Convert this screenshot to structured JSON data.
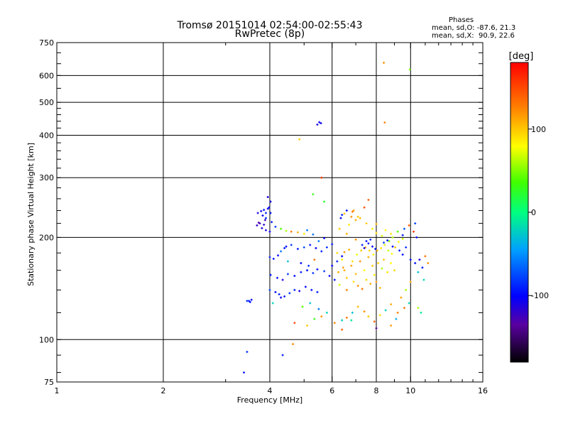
{
  "header": {
    "title": "Tromsø 20151014 02:54:00-02:55:43",
    "subtitle": "RwPretec (8p)",
    "stats_title": "Phases",
    "stats_o": "mean, sd,O: -87.6, 21.3",
    "stats_x": "mean, sd,X:  90.9, 22.6"
  },
  "colorbar": {
    "label": "[deg]",
    "range": [
      -180,
      180
    ],
    "ticks": [
      {
        "value": 100,
        "label": "100"
      },
      {
        "value": 0,
        "label": "0"
      },
      {
        "value": -100,
        "label": "-100"
      }
    ]
  },
  "chart_data": {
    "type": "scatter",
    "title": "Tromsø 20151014 02:54:00-02:55:43",
    "subtitle": "RwPretec (8p)",
    "xlabel": "Frequency [MHz]",
    "ylabel": "Stationary phase Virtual Height [km]",
    "xscale": "log",
    "yscale": "log",
    "xlim": [
      1,
      16
    ],
    "ylim": [
      75,
      750
    ],
    "xticks": [
      1,
      2,
      4,
      6,
      8,
      10,
      16
    ],
    "yticks": [
      75,
      100,
      200,
      300,
      400,
      500,
      600,
      750
    ],
    "grid": true,
    "colorbar_label": "[deg]",
    "series": [
      {
        "points": [
          [
            3.49,
            130,
            -90
          ],
          [
            3.52,
            129,
            -95
          ],
          [
            3.45,
            130,
            -85
          ],
          [
            3.55,
            131,
            -100
          ],
          [
            3.38,
            80,
            -95
          ],
          [
            3.45,
            92,
            -85
          ],
          [
            4.35,
            90,
            -90
          ],
          [
            4.65,
            97,
            125
          ],
          [
            3.7,
            236,
            -110
          ],
          [
            3.78,
            239,
            -100
          ],
          [
            3.85,
            241,
            -95
          ],
          [
            3.9,
            236,
            -90
          ],
          [
            3.95,
            243,
            -105
          ],
          [
            3.82,
            232,
            -100
          ],
          [
            4.02,
            236,
            -95
          ],
          [
            3.9,
            228,
            -85
          ],
          [
            3.98,
            245,
            -100
          ],
          [
            3.95,
            263,
            -110
          ],
          [
            4.02,
            255,
            -105
          ],
          [
            3.88,
            225,
            -120
          ],
          [
            3.75,
            220,
            -125
          ],
          [
            3.68,
            217,
            -120
          ],
          [
            3.8,
            213,
            -115
          ],
          [
            3.9,
            210,
            -110
          ],
          [
            4.0,
            208,
            -100
          ],
          [
            3.72,
            221,
            -130
          ],
          [
            3.85,
            218,
            -120
          ],
          [
            4.05,
            222,
            -95
          ],
          [
            4.15,
            215,
            -80
          ],
          [
            4.3,
            212,
            40
          ],
          [
            4.45,
            209,
            60
          ],
          [
            4.6,
            208,
            130
          ],
          [
            4.8,
            207,
            110
          ],
          [
            5.0,
            205,
            90
          ],
          [
            5.3,
            204,
            -60
          ],
          [
            5.1,
            210,
            -60
          ],
          [
            5.45,
            430,
            -110
          ],
          [
            5.52,
            437,
            -100
          ],
          [
            5.58,
            434,
            -105
          ],
          [
            4.85,
            389,
            100
          ],
          [
            5.6,
            300,
            160
          ],
          [
            5.7,
            255,
            20
          ],
          [
            5.3,
            268,
            30
          ],
          [
            4.0,
            175,
            -90
          ],
          [
            4.1,
            173,
            -95
          ],
          [
            4.22,
            177,
            -100
          ],
          [
            4.3,
            182,
            -60
          ],
          [
            4.4,
            186,
            -90
          ],
          [
            4.45,
            188,
            -100
          ],
          [
            4.6,
            190,
            -80
          ],
          [
            4.8,
            185,
            -90
          ],
          [
            5.0,
            187,
            -75
          ],
          [
            5.2,
            190,
            -95
          ],
          [
            5.4,
            186,
            -100
          ],
          [
            5.6,
            182,
            -90
          ],
          [
            5.8,
            187,
            -85
          ],
          [
            6.0,
            191,
            -90
          ],
          [
            5.5,
            195,
            -60
          ],
          [
            5.7,
            199,
            -100
          ],
          [
            4.5,
            170,
            -30
          ],
          [
            4.9,
            168,
            -100
          ],
          [
            5.15,
            165,
            -85
          ],
          [
            5.35,
            172,
            130
          ],
          [
            6.2,
            170,
            -90
          ],
          [
            6.4,
            176,
            -100
          ],
          [
            6.5,
            181,
            120
          ],
          [
            6.7,
            184,
            110
          ],
          [
            4.02,
            155,
            -90
          ],
          [
            4.2,
            152,
            -95
          ],
          [
            4.35,
            150,
            -110
          ],
          [
            4.5,
            156,
            -80
          ],
          [
            4.7,
            154,
            -100
          ],
          [
            4.9,
            158,
            -90
          ],
          [
            5.1,
            160,
            -100
          ],
          [
            5.3,
            157,
            -85
          ],
          [
            5.45,
            161,
            -95
          ],
          [
            5.7,
            159,
            -80
          ],
          [
            5.9,
            154,
            -100
          ],
          [
            4.15,
            138,
            -100
          ],
          [
            4.25,
            136,
            -90
          ],
          [
            4.4,
            134,
            -95
          ],
          [
            4.55,
            137,
            -85
          ],
          [
            4.7,
            140,
            -90
          ],
          [
            4.85,
            139,
            -110
          ],
          [
            5.05,
            143,
            -100
          ],
          [
            5.25,
            140,
            -95
          ],
          [
            5.45,
            138,
            -90
          ],
          [
            4.0,
            140,
            -80
          ],
          [
            4.08,
            128,
            -20
          ],
          [
            4.3,
            133,
            -105
          ],
          [
            4.95,
            125,
            40
          ],
          [
            5.2,
            128,
            -30
          ],
          [
            5.5,
            123,
            -60
          ],
          [
            5.35,
            115,
            30
          ],
          [
            5.6,
            117,
            120
          ],
          [
            4.7,
            112,
            150
          ],
          [
            5.1,
            110,
            100
          ],
          [
            5.8,
            120,
            -20
          ],
          [
            6.1,
            112,
            125
          ],
          [
            6.4,
            107,
            140
          ],
          [
            6.8,
            114,
            -10
          ],
          [
            6.2,
            180,
            95
          ],
          [
            6.4,
            172,
            85
          ],
          [
            6.5,
            160,
            110
          ],
          [
            6.6,
            152,
            100
          ],
          [
            6.8,
            165,
            115
          ],
          [
            6.9,
            148,
            90
          ],
          [
            7.0,
            156,
            105
          ],
          [
            7.2,
            170,
            120
          ],
          [
            7.4,
            160,
            80
          ],
          [
            7.5,
            150,
            95
          ],
          [
            7.6,
            175,
            110
          ],
          [
            7.8,
            165,
            100
          ],
          [
            7.9,
            155,
            85
          ],
          [
            8.0,
            148,
            115
          ],
          [
            8.1,
            168,
            95
          ],
          [
            8.3,
            162,
            60
          ],
          [
            8.4,
            172,
            100
          ],
          [
            8.6,
            158,
            90
          ],
          [
            8.8,
            168,
            80
          ],
          [
            9.0,
            160,
            95
          ],
          [
            7.1,
            144,
            120
          ],
          [
            7.3,
            141,
            130
          ],
          [
            7.7,
            146,
            110
          ],
          [
            8.2,
            142,
            105
          ],
          [
            6.3,
            145,
            70
          ],
          [
            6.6,
            140,
            125
          ],
          [
            6.1,
            150,
            -95
          ],
          [
            6.0,
            165,
            -100
          ],
          [
            6.25,
            158,
            110
          ],
          [
            6.45,
            163,
            115
          ],
          [
            6.85,
            170,
            90
          ],
          [
            7.05,
            178,
            75
          ],
          [
            7.25,
            183,
            100
          ],
          [
            7.45,
            187,
            110
          ],
          [
            7.65,
            183,
            95
          ],
          [
            7.85,
            178,
            85
          ],
          [
            8.05,
            183,
            105
          ],
          [
            8.25,
            186,
            90
          ],
          [
            8.45,
            190,
            70
          ],
          [
            8.65,
            183,
            65
          ],
          [
            8.85,
            179,
            80
          ],
          [
            9.05,
            187,
            100
          ],
          [
            9.25,
            194,
            85
          ],
          [
            9.5,
            198,
            70
          ],
          [
            8.7,
            195,
            50
          ],
          [
            8.9,
            200,
            60
          ],
          [
            7.0,
            197,
            120
          ],
          [
            6.6,
            205,
            110
          ],
          [
            6.3,
            212,
            100
          ],
          [
            6.7,
            218,
            90
          ],
          [
            7.0,
            225,
            110
          ],
          [
            6.8,
            230,
            120
          ],
          [
            6.5,
            235,
            100
          ],
          [
            6.9,
            240,
            115
          ],
          [
            7.2,
            228,
            105
          ],
          [
            7.5,
            220,
            100
          ],
          [
            7.8,
            212,
            85
          ],
          [
            8.0,
            206,
            95
          ],
          [
            8.3,
            202,
            70
          ],
          [
            8.5,
            210,
            80
          ],
          [
            8.8,
            205,
            90
          ],
          [
            9.2,
            208,
            40
          ],
          [
            9.6,
            212,
            -70
          ],
          [
            9.9,
            217,
            140
          ],
          [
            10.3,
            220,
            -80
          ],
          [
            10.4,
            200,
            -100
          ],
          [
            10.2,
            208,
            160
          ],
          [
            9.5,
            203,
            -90
          ],
          [
            6.4,
            233,
            -90
          ],
          [
            6.6,
            240,
            -95
          ],
          [
            6.35,
            228,
            -100
          ],
          [
            7.6,
            258,
            140
          ],
          [
            7.4,
            245,
            150
          ],
          [
            6.85,
            238,
            130
          ],
          [
            7.1,
            230,
            100
          ],
          [
            8.0,
            219,
            110
          ],
          [
            7.3,
            190,
            -90
          ],
          [
            7.5,
            195,
            -100
          ],
          [
            7.6,
            192,
            -95
          ],
          [
            7.7,
            197,
            -85
          ],
          [
            7.4,
            186,
            -110
          ],
          [
            7.8,
            188,
            -100
          ],
          [
            7.95,
            185,
            -90
          ],
          [
            8.4,
            193,
            -80
          ],
          [
            8.6,
            196,
            -95
          ],
          [
            8.9,
            188,
            -100
          ],
          [
            9.3,
            183,
            -90
          ],
          [
            9.7,
            187,
            -85
          ],
          [
            9.5,
            178,
            -95
          ],
          [
            10.0,
            172,
            -100
          ],
          [
            10.3,
            168,
            -95
          ],
          [
            10.6,
            172,
            -110
          ],
          [
            11.0,
            176,
            130
          ],
          [
            11.2,
            168,
            120
          ],
          [
            10.8,
            163,
            -95
          ],
          [
            10.5,
            158,
            -30
          ],
          [
            10.9,
            150,
            -20
          ],
          [
            10.0,
            148,
            110
          ],
          [
            9.7,
            140,
            60
          ],
          [
            9.4,
            133,
            115
          ],
          [
            9.9,
            128,
            -20
          ],
          [
            9.6,
            124,
            130
          ],
          [
            9.2,
            120,
            125
          ],
          [
            8.8,
            127,
            110
          ],
          [
            8.5,
            122,
            -20
          ],
          [
            8.2,
            118,
            90
          ],
          [
            7.9,
            113,
            140
          ],
          [
            7.6,
            117,
            100
          ],
          [
            7.4,
            121,
            120
          ],
          [
            7.1,
            125,
            105
          ],
          [
            6.85,
            120,
            -30
          ],
          [
            6.6,
            116,
            130
          ],
          [
            6.4,
            114,
            -25
          ],
          [
            8.0,
            108,
            -140
          ],
          [
            10.5,
            124,
            60
          ],
          [
            8.8,
            110,
            115
          ],
          [
            9.1,
            115,
            -40
          ],
          [
            10.7,
            120,
            -10
          ],
          [
            8.4,
            654,
            120
          ],
          [
            8.45,
            436,
            125
          ],
          [
            9.95,
            625,
            50
          ]
        ]
      }
    ]
  }
}
